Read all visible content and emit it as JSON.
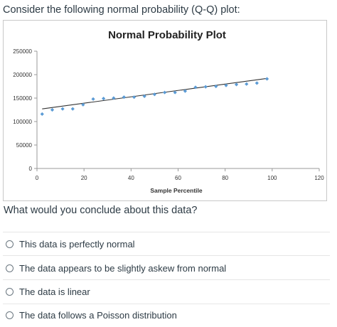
{
  "prompt": "Consider the following normal probability (Q-Q) plot:",
  "question": "What would you conclude about this data?",
  "options": [
    {
      "label": "This data is perfectly normal"
    },
    {
      "label": "The data appears to be slightly askew from normal"
    },
    {
      "label": "The data is linear"
    },
    {
      "label": "The data follows a Poisson distribution"
    }
  ],
  "colors": {
    "marker": "#5b9bd5",
    "trend": "#333333",
    "axis": "#999999"
  },
  "chart_data": {
    "type": "scatter",
    "title": "Normal Probability Plot",
    "xlabel": "Sample Percentile",
    "ylabel": "",
    "xlim": [
      0,
      120
    ],
    "ylim": [
      0,
      250000
    ],
    "xticks": [
      0,
      20,
      40,
      60,
      80,
      100,
      120
    ],
    "yticks": [
      0,
      50000,
      100000,
      150000,
      200000,
      250000
    ],
    "xtick_labels": [
      "0",
      "20",
      "40",
      "60",
      "80",
      "100",
      "120"
    ],
    "ytick_labels": [
      "0",
      "50000",
      "100000",
      "150000",
      "200000",
      "250000"
    ],
    "grid": false,
    "legend": "none",
    "x": [
      2.2,
      6.5,
      10.9,
      15.2,
      19.6,
      23.9,
      28.3,
      32.6,
      37.0,
      41.3,
      45.7,
      50.0,
      54.3,
      58.7,
      63.0,
      67.4,
      71.7,
      76.1,
      80.4,
      84.8,
      89.1,
      93.5,
      97.8
    ],
    "y": [
      116000,
      125000,
      127000,
      127000,
      136000,
      148000,
      149000,
      150000,
      152000,
      152000,
      154000,
      158000,
      162000,
      162000,
      165000,
      173000,
      174000,
      175000,
      177000,
      179000,
      180000,
      182000,
      191000
    ],
    "trendline": {
      "x": [
        2.2,
        97.8
      ],
      "y": [
        127000,
        192000
      ]
    }
  }
}
